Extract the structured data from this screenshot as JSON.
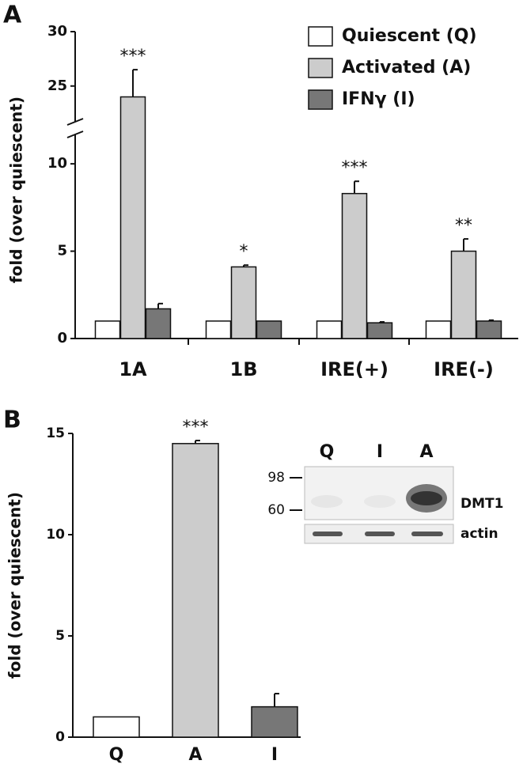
{
  "chart_data": [
    {
      "type": "bar",
      "panel_label": "A",
      "y_label": "fold (over quiescent)",
      "categories": [
        "1A",
        "1B",
        "IRE(+)",
        "IRE(-)"
      ],
      "series": [
        {
          "name": "Quiescent (Q)",
          "color": "#ffffff",
          "values": [
            1,
            1,
            1,
            1
          ],
          "errors": [
            0,
            0,
            0,
            0
          ]
        },
        {
          "name": "Activated (A)",
          "color": "#cccccc",
          "values": [
            24,
            4.1,
            8.3,
            5
          ],
          "errors": [
            2.5,
            0.1,
            0.7,
            0.7
          ],
          "significance": [
            "***",
            "*",
            "***",
            "**"
          ]
        },
        {
          "name": "IFNγ (I)",
          "color": "#777777",
          "values": [
            1.7,
            1,
            0.9,
            1
          ],
          "errors": [
            0.3,
            0,
            0.05,
            0.05
          ]
        }
      ],
      "ylim": [
        0,
        30
      ],
      "axis_break": [
        11.5,
        22
      ],
      "yticks": [
        0,
        5,
        10,
        25,
        30
      ],
      "legend": "top-right"
    },
    {
      "type": "bar",
      "panel_label": "B",
      "y_label": "fold (over quiescent)",
      "categories": [
        "Q",
        "A",
        "I"
      ],
      "values": [
        1,
        14.5,
        1.5
      ],
      "errors": [
        0,
        0.15,
        0.65
      ],
      "colors": [
        "#ffffff",
        "#cccccc",
        "#777777"
      ],
      "significance": [
        null,
        "***",
        null
      ],
      "ylim": [
        0,
        15
      ],
      "yticks": [
        0,
        5,
        10,
        15
      ]
    }
  ],
  "inset": {
    "lanes": [
      "Q",
      "I",
      "A"
    ],
    "markers": [
      "98",
      "60"
    ],
    "bands": [
      "DMT1",
      "actin"
    ]
  }
}
